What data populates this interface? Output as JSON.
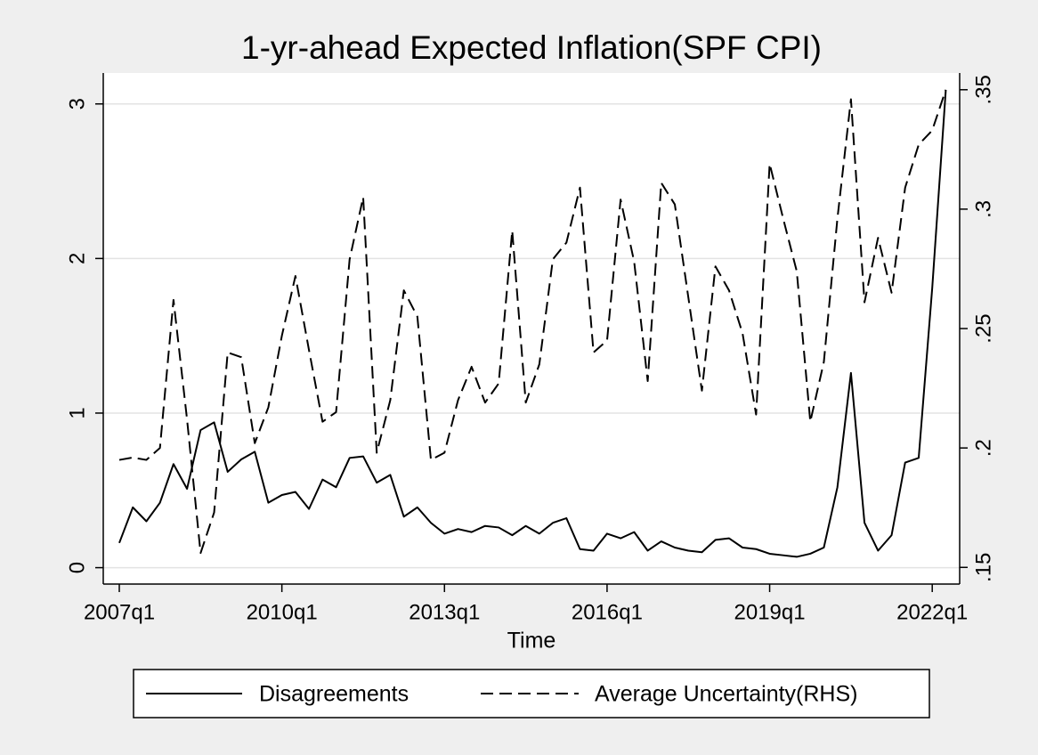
{
  "chart_data": {
    "type": "line",
    "title": "1-yr-ahead Expected Inflation(SPF CPI)",
    "x_label": "Time",
    "categories": [
      "2007q1",
      null,
      null,
      null,
      null,
      null,
      null,
      null,
      null,
      null,
      null,
      null,
      "2010q1",
      null,
      null,
      null,
      null,
      null,
      null,
      null,
      null,
      null,
      null,
      null,
      "2013q1",
      null,
      null,
      null,
      null,
      null,
      null,
      null,
      null,
      null,
      null,
      null,
      "2016q1",
      null,
      null,
      null,
      null,
      null,
      null,
      null,
      null,
      null,
      null,
      null,
      "2019q1",
      null,
      null,
      null,
      null,
      null,
      null,
      null,
      null,
      null,
      null,
      null,
      "2022q1",
      null
    ],
    "series": [
      {
        "name": "Disagreements",
        "color": "#000000",
        "dash": "solid",
        "axis": "y",
        "values": [
          0.16,
          0.39,
          0.3,
          0.42,
          0.67,
          0.51,
          0.89,
          0.94,
          0.62,
          0.7,
          0.75,
          0.42,
          0.47,
          0.49,
          0.38,
          0.57,
          0.52,
          0.71,
          0.72,
          0.55,
          0.6,
          0.33,
          0.39,
          0.29,
          0.22,
          0.25,
          0.23,
          0.27,
          0.26,
          0.21,
          0.27,
          0.22,
          0.29,
          0.32,
          0.12,
          0.11,
          0.22,
          0.19,
          0.23,
          0.11,
          0.17,
          0.13,
          0.11,
          0.1,
          0.18,
          0.19,
          0.13,
          0.12,
          0.09,
          0.08,
          0.07,
          0.09,
          0.13,
          0.52,
          1.26,
          0.29,
          0.11,
          0.21,
          0.68,
          0.71,
          1.81,
          3.09
        ]
      },
      {
        "name": "Average Uncertainty(RHS)",
        "color": "#000000",
        "dash": "dashed",
        "axis": "y2",
        "values": [
          0.195,
          0.196,
          0.195,
          0.2,
          0.262,
          0.212,
          0.156,
          0.173,
          0.24,
          0.238,
          0.202,
          0.217,
          0.247,
          0.272,
          0.241,
          0.211,
          0.215,
          0.279,
          0.305,
          0.198,
          0.22,
          0.266,
          0.255,
          0.195,
          0.198,
          0.22,
          0.234,
          0.219,
          0.227,
          0.291,
          0.219,
          0.235,
          0.279,
          0.286,
          0.309,
          0.24,
          0.245,
          0.304,
          0.278,
          0.228,
          0.311,
          0.302,
          0.263,
          0.224,
          0.276,
          0.266,
          0.248,
          0.214,
          0.319,
          0.296,
          0.274,
          0.211,
          0.236,
          0.296,
          0.346,
          0.261,
          0.288,
          0.265,
          0.309,
          0.327,
          0.333,
          0.35
        ]
      }
    ],
    "ylim": [
      -0.06,
      3.2
    ],
    "yticks": [
      0,
      1,
      2,
      3
    ],
    "y2lim": [
      0.146,
      0.357
    ],
    "y2ticks": [
      {
        "value": 0.15,
        "label": ".15"
      },
      {
        "value": 0.2,
        "label": ".2"
      },
      {
        "value": 0.25,
        "label": ".25"
      },
      {
        "value": 0.3,
        "label": ".3"
      },
      {
        "value": 0.35,
        "label": ".35"
      }
    ],
    "grid": true,
    "legend": "bottom"
  }
}
